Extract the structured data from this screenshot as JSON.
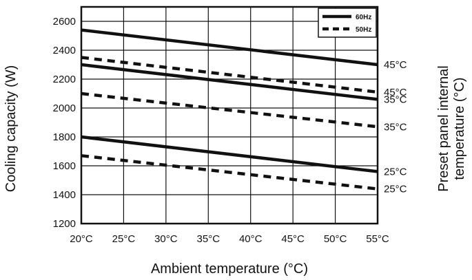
{
  "chart_data": {
    "type": "line",
    "title": "",
    "xlabel": "Ambient temperature (°C)",
    "ylabel": "Cooling capacity (W)",
    "right_label_lines": [
      "Preset panel internal",
      "temperature (°C)"
    ],
    "x": [
      20,
      25,
      30,
      35,
      40,
      45,
      50,
      55
    ],
    "x_tick_labels": [
      "20°C",
      "25°C",
      "30°C",
      "35°C",
      "40°C",
      "45°C",
      "50°C",
      "55°C"
    ],
    "xlim": [
      20,
      55
    ],
    "ylim": [
      1200,
      2700
    ],
    "y_ticks": [
      1200,
      1400,
      1600,
      1800,
      2000,
      2200,
      2400,
      2600
    ],
    "y_tick_labels": [
      "1200",
      "1400",
      "1600",
      "1800",
      "2000",
      "2200",
      "2400",
      "2600"
    ],
    "grid": true,
    "legend": {
      "position": "top-right",
      "entries": [
        {
          "label": "60Hz",
          "style": "solid"
        },
        {
          "label": "50Hz",
          "style": "dashed"
        }
      ]
    },
    "series": [
      {
        "legend": "60Hz",
        "style": "solid",
        "end_label": "45°C",
        "x": [
          20,
          55
        ],
        "y": [
          2540,
          2300
        ]
      },
      {
        "legend": "50Hz",
        "style": "dashed",
        "end_label": "45°C",
        "x": [
          20,
          55
        ],
        "y": [
          2350,
          2110
        ]
      },
      {
        "legend": "60Hz",
        "style": "solid",
        "end_label": "35°C",
        "x": [
          20,
          55
        ],
        "y": [
          2300,
          2060
        ]
      },
      {
        "legend": "50Hz",
        "style": "dashed",
        "end_label": "35°C",
        "x": [
          20,
          55
        ],
        "y": [
          2100,
          1870
        ]
      },
      {
        "legend": "60Hz",
        "style": "solid",
        "end_label": "25°C",
        "x": [
          20,
          55
        ],
        "y": [
          1800,
          1560
        ]
      },
      {
        "legend": "50Hz",
        "style": "dashed",
        "end_label": "25°C",
        "x": [
          20,
          55
        ],
        "y": [
          1670,
          1440
        ]
      }
    ],
    "colors": {
      "line": "#111111",
      "grid": "#111111",
      "background": "#ffffff"
    }
  }
}
